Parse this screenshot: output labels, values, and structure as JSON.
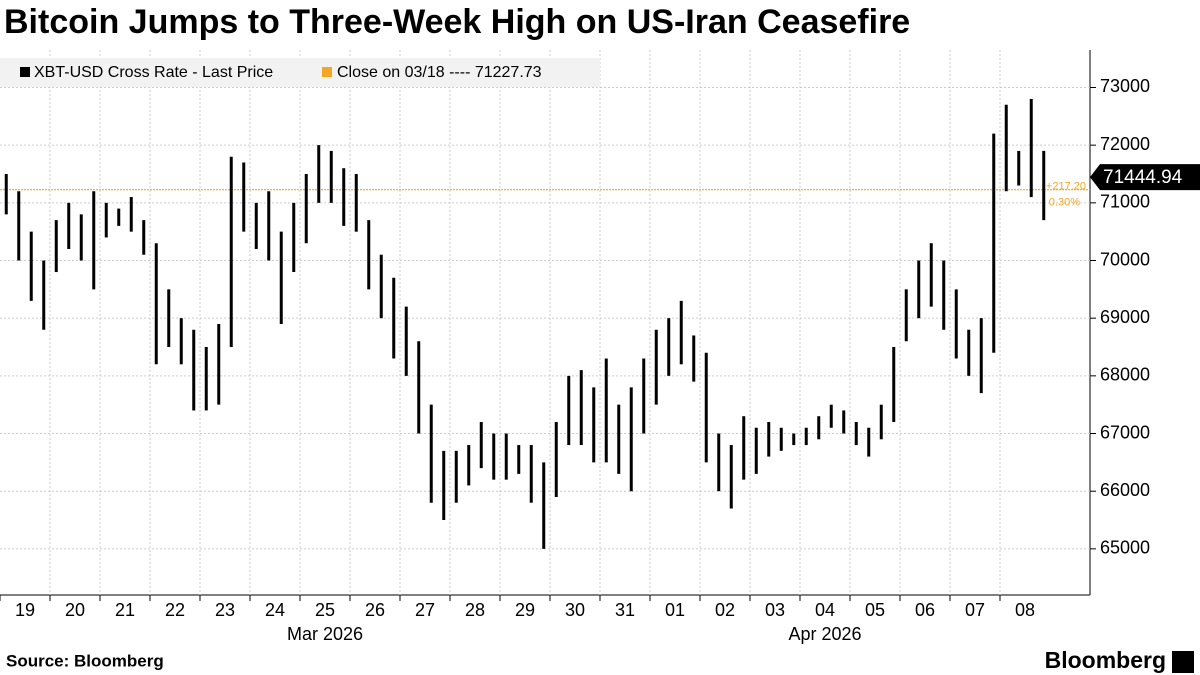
{
  "chart_data": {
    "type": "range-bar",
    "title": "Bitcoin Jumps to Three-Week High on US-Iran Ceasefire",
    "source": "Source: Bloomberg",
    "brand": "Bloomberg",
    "categories": [
      "19",
      "20",
      "21",
      "22",
      "23",
      "24",
      "25",
      "26",
      "27",
      "28",
      "29",
      "30",
      "31",
      "01",
      "02",
      "03",
      "04",
      "05",
      "06",
      "07",
      "08"
    ],
    "x_group_labels": [
      "Mar 2026",
      "Apr 2026"
    ],
    "series": [
      {
        "name": "XBT-USD Cross Rate - Last Price",
        "color": "#000000",
        "lows": [
          [
            70800,
            70000,
            69300,
            68800
          ],
          [
            69800,
            70200,
            70000,
            69500
          ],
          [
            70400,
            70600,
            70500,
            70100
          ],
          [
            68200,
            68500,
            68200,
            67400
          ],
          [
            67400,
            67500,
            68500,
            70500
          ],
          [
            70200,
            70000,
            68900,
            69800
          ],
          [
            70300,
            71000,
            71000,
            70600
          ],
          [
            70500,
            69500,
            69000,
            68300
          ],
          [
            68000,
            67000,
            65800,
            65500
          ],
          [
            65800,
            66100,
            66400,
            66200
          ],
          [
            66200,
            66300,
            65800,
            65000
          ],
          [
            65900,
            66800,
            66800,
            66500
          ],
          [
            66500,
            66300,
            66000,
            67000
          ],
          [
            67500,
            68000,
            68200,
            67900
          ],
          [
            66500,
            66000,
            65700,
            66200
          ],
          [
            66300,
            66600,
            66700,
            66800
          ],
          [
            66800,
            66900,
            67100,
            67000
          ],
          [
            66800,
            66600,
            66900,
            67200
          ],
          [
            68600,
            69000,
            69200,
            68800
          ],
          [
            68300,
            68000,
            67700,
            68400
          ],
          [
            71200,
            71300,
            71100,
            70700
          ]
        ],
        "highs": [
          [
            71500,
            71200,
            70500,
            70000
          ],
          [
            70700,
            71000,
            70800,
            71200
          ],
          [
            71000,
            70900,
            71100,
            70700
          ],
          [
            70300,
            69500,
            69000,
            68800
          ],
          [
            68500,
            68900,
            71800,
            71700
          ],
          [
            71000,
            71200,
            70500,
            71000
          ],
          [
            71500,
            72000,
            71900,
            71600
          ],
          [
            71500,
            70700,
            70100,
            69700
          ],
          [
            69200,
            68600,
            67500,
            66700
          ],
          [
            66700,
            66800,
            67200,
            67000
          ],
          [
            67000,
            66800,
            66800,
            66500
          ],
          [
            67200,
            68000,
            68100,
            67800
          ],
          [
            68300,
            67500,
            67800,
            68300
          ],
          [
            68800,
            69000,
            69300,
            68700
          ],
          [
            68400,
            67000,
            66800,
            67300
          ],
          [
            67100,
            67200,
            67100,
            67000
          ],
          [
            67100,
            67300,
            67500,
            67400
          ],
          [
            67200,
            67100,
            67500,
            68500
          ],
          [
            69500,
            70000,
            70300,
            70000
          ],
          [
            69500,
            68800,
            69000,
            72200
          ],
          [
            72700,
            71900,
            72800,
            71900
          ]
        ]
      }
    ],
    "reference_line": {
      "label": "Close on 03/18 ---- 71227.73",
      "value": 71227.73,
      "color": "#f5a623"
    },
    "last_value": 71444.94,
    "change_label": "+217.20",
    "change_pct_label": "0.30%",
    "ylim": [
      64200,
      73650
    ],
    "yticks": [
      65000,
      66000,
      67000,
      68000,
      69000,
      70000,
      71000,
      72000,
      73000
    ],
    "grid": true
  }
}
